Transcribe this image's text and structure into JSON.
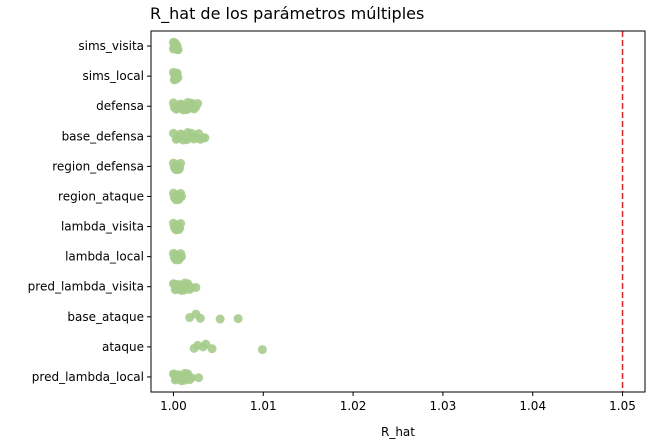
{
  "chart_data": {
    "type": "scatter",
    "title": "R_hat de los parámetros múltiples",
    "xlabel": "R_hat",
    "ylabel": "",
    "xlim": [
      0.9975,
      1.0525
    ],
    "xticks": [
      "1.00",
      "1.01",
      "1.02",
      "1.03",
      "1.04",
      "1.05"
    ],
    "xtick_values": [
      1.0,
      1.01,
      1.02,
      1.03,
      1.04,
      1.05
    ],
    "reference_line": {
      "x": 1.05,
      "color": "#d62728",
      "style": "dashed"
    },
    "point_color": "#a6cc8c",
    "grid": false,
    "categories": [
      "sims_visita",
      "sims_local",
      "defensa",
      "base_defensa",
      "region_defensa",
      "region_ataque",
      "lambda_visita",
      "lambda_local",
      "pred_lambda_visita",
      "base_ataque",
      "ataque",
      "pred_lambda_local"
    ],
    "series": [
      {
        "category": "sims_visita",
        "x": [
          1.0,
          1.0001,
          1.0002,
          1.0003,
          1.0004,
          1.0005,
          1.0,
          1.0002,
          1.0004,
          1.0001,
          1.0003,
          1.0005
        ],
        "jitter": [
          -0.25,
          -0.15,
          -0.05,
          0.05,
          0.15,
          0.25,
          0.2,
          -0.2,
          0.0,
          0.1,
          -0.1,
          0.22
        ]
      },
      {
        "category": "sims_local",
        "x": [
          1.0,
          1.0001,
          1.0002,
          1.0003,
          1.0004,
          1.0005,
          1.0001,
          1.0003,
          1.0002,
          1.0004
        ],
        "jitter": [
          -0.25,
          -0.1,
          0.05,
          0.2,
          -0.2,
          0.1,
          0.25,
          -0.05,
          0.15,
          -0.15
        ]
      },
      {
        "category": "defensa",
        "x": [
          1.0,
          1.0005,
          1.001,
          1.0015,
          1.002,
          1.0025,
          1.0003,
          1.0008,
          1.0013,
          1.0018,
          1.0023,
          1.0027,
          1.0006,
          1.0011,
          1.0016,
          1.0021,
          1.0001,
          1.0009,
          1.0014,
          1.0019
        ],
        "jitter": [
          -0.22,
          0.15,
          -0.1,
          0.22,
          -0.2,
          0.05,
          0.2,
          -0.15,
          0.1,
          -0.05,
          0.18,
          -0.18,
          0.0,
          0.25,
          -0.25,
          0.12,
          0.08,
          -0.08,
          0.2,
          -0.2
        ]
      },
      {
        "category": "base_defensa",
        "x": [
          1.0,
          1.0005,
          1.001,
          1.0015,
          1.002,
          1.0025,
          1.003,
          1.0035,
          1.0003,
          1.0008,
          1.0013,
          1.0018,
          1.0023,
          1.0028,
          1.0033,
          1.0006,
          1.0011,
          1.0016,
          1.0021,
          1.0026
        ],
        "jitter": [
          -0.2,
          0.15,
          -0.1,
          0.22,
          -0.2,
          0.05,
          0.2,
          0.1,
          0.2,
          -0.15,
          0.1,
          -0.05,
          0.18,
          -0.18,
          0.1,
          0.0,
          0.25,
          -0.25,
          0.12,
          0.08
        ]
      },
      {
        "category": "region_defensa",
        "x": [
          1.0,
          1.0002,
          1.0004,
          1.0006,
          1.0008,
          1.0001,
          1.0003,
          1.0005,
          1.0007,
          1.0002
        ],
        "jitter": [
          -0.22,
          0.15,
          -0.1,
          0.2,
          -0.2,
          0.05,
          0.22,
          -0.05,
          0.1,
          0.0
        ]
      },
      {
        "category": "region_ataque",
        "x": [
          1.0,
          1.0002,
          1.0004,
          1.0006,
          1.0008,
          1.0001,
          1.0003,
          1.0005,
          1.0007,
          1.0009
        ],
        "jitter": [
          -0.22,
          0.15,
          -0.1,
          0.2,
          -0.2,
          0.05,
          0.22,
          -0.05,
          0.1,
          0.0
        ]
      },
      {
        "category": "lambda_visita",
        "x": [
          1.0,
          1.0002,
          1.0004,
          1.0006,
          1.0008,
          1.0001,
          1.0003,
          1.0005,
          1.0007,
          1.0002
        ],
        "jitter": [
          -0.22,
          0.15,
          -0.1,
          0.2,
          -0.2,
          0.05,
          0.22,
          -0.05,
          0.1,
          0.0
        ]
      },
      {
        "category": "lambda_local",
        "x": [
          1.0,
          1.0002,
          1.0004,
          1.0006,
          1.0008,
          1.0001,
          1.0003,
          1.0005,
          1.0007,
          1.0009
        ],
        "jitter": [
          -0.22,
          0.15,
          -0.1,
          0.2,
          -0.2,
          0.05,
          0.22,
          -0.05,
          0.1,
          0.0
        ]
      },
      {
        "category": "pred_lambda_visita",
        "x": [
          1.0,
          1.0004,
          1.0008,
          1.0012,
          1.0016,
          1.002,
          1.0025,
          1.0002,
          1.0006,
          1.001,
          1.0014,
          1.0018,
          1.0001,
          1.0005,
          1.0009,
          1.0013
        ],
        "jitter": [
          -0.2,
          0.15,
          -0.1,
          0.22,
          -0.2,
          0.05,
          0.05,
          0.2,
          -0.15,
          0.1,
          -0.05,
          0.18,
          -0.18,
          0.0,
          0.25,
          -0.25
        ]
      },
      {
        "category": "base_ataque",
        "x": [
          1.0018,
          1.0025,
          1.003,
          1.0052,
          1.0072
        ],
        "jitter": [
          0.05,
          -0.18,
          0.1,
          0.15,
          0.12
        ]
      },
      {
        "category": "ataque",
        "x": [
          1.0023,
          1.0027,
          1.0033,
          1.0036,
          1.0043,
          1.0099
        ],
        "jitter": [
          0.1,
          -0.1,
          0.0,
          -0.18,
          0.12,
          0.18
        ]
      },
      {
        "category": "pred_lambda_local",
        "x": [
          1.0,
          1.0004,
          1.0008,
          1.0012,
          1.0016,
          1.002,
          1.0028,
          1.0002,
          1.0006,
          1.001,
          1.0014,
          1.0018,
          1.0001,
          1.0005,
          1.0009,
          1.0013
        ],
        "jitter": [
          -0.2,
          0.15,
          -0.1,
          0.22,
          -0.2,
          0.05,
          0.05,
          0.2,
          -0.15,
          0.1,
          -0.05,
          0.18,
          -0.18,
          0.0,
          0.25,
          -0.25
        ]
      }
    ]
  }
}
